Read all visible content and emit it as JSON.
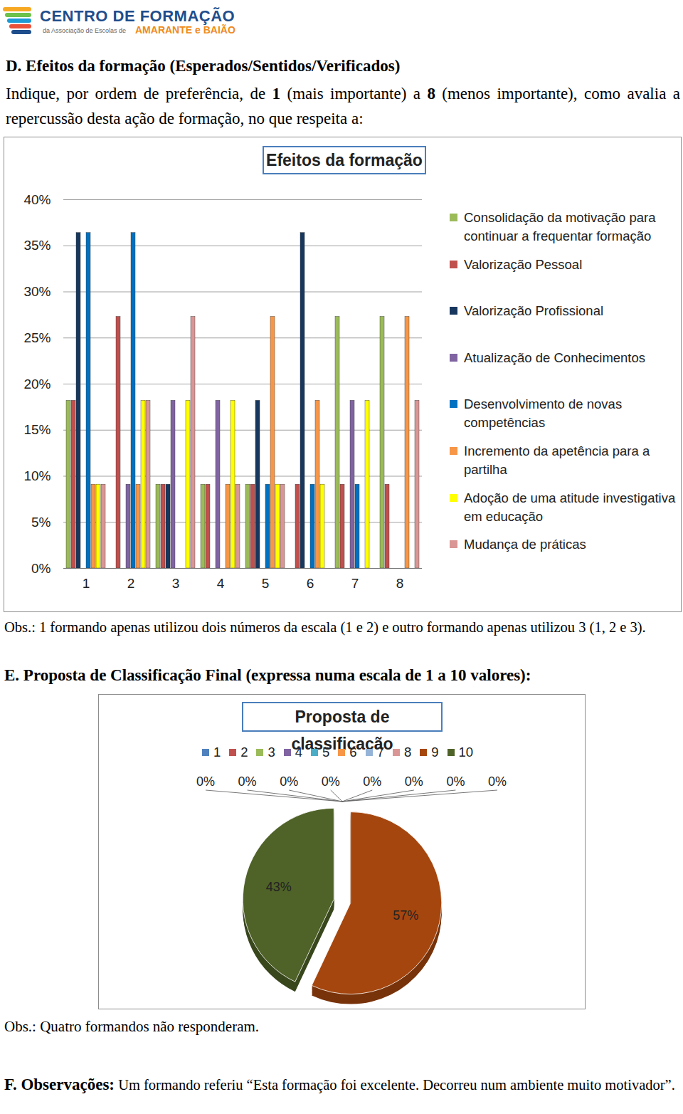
{
  "header": {
    "logo_title": "CENTRO DE FORMAÇÃO",
    "logo_subtitle": "da Associação de Escolas de",
    "logo_place": "AMARANTE e BAIÃO"
  },
  "section_d": {
    "heading": "D. Efeitos da formação (Esperados/Sentidos/Verificados)",
    "instruction": [
      {
        "text": "Indique, por ordem de preferência, de "
      },
      {
        "text": "1",
        "bold": true
      },
      {
        "text": " (mais importante) a "
      },
      {
        "text": "8",
        "bold": true
      },
      {
        "text": " (menos importante), como avalia a repercussão desta ação de formação, no que respeita a:"
      }
    ],
    "note": "Obs.: 1 formando apenas utilizou dois números da escala (1 e 2) e outro formando apenas utilizou 3 (1, 2 e 3)."
  },
  "section_e": {
    "heading": "E. Proposta de Classificação Final (expressa numa escala de 1 a 10 valores):",
    "note": "Obs.: Quatro formandos não responderam."
  },
  "section_f": {
    "heading": "F. Observações:",
    "text": "Um formando referiu “Esta formação foi excelente. Decorreu num ambiente muito motivador”."
  },
  "chart_data": [
    {
      "type": "bar",
      "title": "Efeitos da formação",
      "categories": [
        "1",
        "2",
        "3",
        "4",
        "5",
        "6",
        "7",
        "8"
      ],
      "series": [
        {
          "name": "Consolidação da motivação para continuar a frequentar formação",
          "color": "#9bbb59",
          "values": [
            18.2,
            0,
            9.1,
            9.1,
            9.1,
            0,
            27.3,
            27.3
          ]
        },
        {
          "name": "Valorização Pessoal",
          "color": "#c0504d",
          "values": [
            18.2,
            27.3,
            9.1,
            9.1,
            9.1,
            9.1,
            9.1,
            9.1
          ]
        },
        {
          "name": "Valorização Profissional",
          "color": "#17375e",
          "values": [
            36.4,
            0,
            9.1,
            0,
            18.2,
            36.4,
            0,
            0
          ]
        },
        {
          "name": "Atualização de Conhecimentos",
          "color": "#8064a2",
          "values": [
            0,
            9.1,
            18.2,
            18.2,
            0,
            0,
            18.2,
            0
          ]
        },
        {
          "name": "Desenvolvimento de novas competências",
          "color": "#0070c0",
          "values": [
            36.4,
            36.4,
            0,
            0,
            9.1,
            9.1,
            9.1,
            0
          ]
        },
        {
          "name": "Incremento da apetência para a partilha",
          "color": "#f79646",
          "values": [
            9.1,
            9.1,
            0,
            9.1,
            27.3,
            18.2,
            0,
            27.3
          ]
        },
        {
          "name": "Adoção de uma atitude investigativa em educação",
          "color": "#ffff00",
          "values": [
            9.1,
            18.2,
            18.2,
            18.2,
            9.1,
            9.1,
            18.2,
            0
          ]
        },
        {
          "name": "Mudança de práticas",
          "color": "#d99694",
          "values": [
            9.1,
            18.2,
            27.3,
            9.1,
            9.1,
            0,
            0,
            18.2
          ]
        }
      ],
      "ylim": [
        0,
        40
      ],
      "yticks": [
        {
          "value": 0,
          "label": "0%"
        },
        {
          "value": 5,
          "label": "5%"
        },
        {
          "value": 10,
          "label": "10%"
        },
        {
          "value": 15,
          "label": "15%"
        },
        {
          "value": 20,
          "label": "20%"
        },
        {
          "value": 25,
          "label": "25%"
        },
        {
          "value": 30,
          "label": "30%"
        },
        {
          "value": 35,
          "label": "35%"
        },
        {
          "value": 40,
          "label": "40%"
        }
      ],
      "grid": true,
      "legend": "right"
    },
    {
      "type": "pie",
      "title": "Proposta de classificação",
      "categories": [
        "1",
        "2",
        "3",
        "4",
        "5",
        "6",
        "7",
        "8",
        "9",
        "10"
      ],
      "values": [
        0,
        0,
        0,
        0,
        0,
        0,
        0,
        0,
        57,
        43
      ],
      "value_labels": [
        "0%",
        "0%",
        "0%",
        "0%",
        "0%",
        "0%",
        "0%",
        "0%",
        "57%",
        "43%"
      ],
      "colors": [
        "#4f81bd",
        "#c0504d",
        "#9bbb59",
        "#8064a2",
        "#4bacc6",
        "#f79646",
        "#95b3d7",
        "#d99694",
        "#a5460e",
        "#4f6228"
      ],
      "data_labels": true,
      "legend": "top"
    }
  ]
}
